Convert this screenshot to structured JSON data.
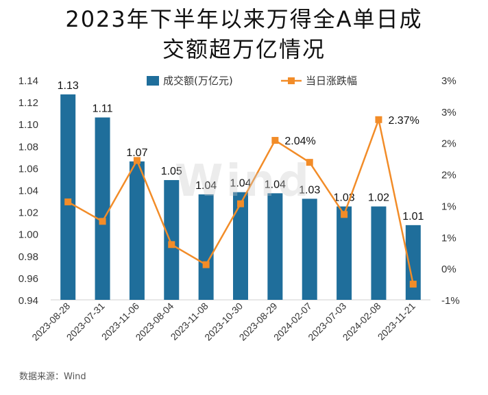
{
  "title_line1": "2023年下半年以来万得全A单日成",
  "title_line2": "交额超万亿情况",
  "source": "数据来源：Wind",
  "watermark": "Wind",
  "chart_data": {
    "type": "bar+line",
    "categories": [
      "2023-08-28",
      "2023-07-31",
      "2023-11-06",
      "2023-08-04",
      "2023-11-08",
      "2023-10-30",
      "2023-08-29",
      "2024-02-07",
      "2023-07-03",
      "2024-02-08",
      "2023-11-21"
    ],
    "series": [
      {
        "name": "成交额(万亿元)",
        "type": "bar",
        "axis": "left",
        "color": "#1f6e9b",
        "values": [
          1.127,
          1.106,
          1.066,
          1.049,
          1.036,
          1.038,
          1.037,
          1.032,
          1.025,
          1.025,
          1.008
        ],
        "labels": [
          "1.13",
          "1.11",
          "1.07",
          "1.05",
          "1.04",
          "1.04",
          "1.04",
          "1.03",
          "1.03",
          "1.02",
          "1.01"
        ]
      },
      {
        "name": "当日涨跌幅",
        "type": "line",
        "axis": "right",
        "color": "#f28c28",
        "values": [
          1.06,
          0.75,
          1.72,
          0.38,
          0.06,
          1.03,
          2.04,
          1.69,
          0.86,
          2.37,
          -0.25
        ],
        "labels": [
          "",
          "",
          "",
          "",
          "",
          "",
          "2.04%",
          "",
          "",
          "2.37%",
          ""
        ]
      }
    ],
    "left_axis": {
      "min": 0.94,
      "max": 1.14,
      "ticks": [
        "1.14",
        "1.12",
        "1.10",
        "1.08",
        "1.06",
        "1.04",
        "1.02",
        "1.00",
        "0.98",
        "0.96",
        "0.94"
      ]
    },
    "right_axis": {
      "min": -0.5,
      "max": 3.0,
      "ticks": [
        "3%",
        "3%",
        "2%",
        "2%",
        "1%",
        "1%",
        "0%",
        "-1%"
      ]
    },
    "grid": false,
    "legend": "top"
  }
}
